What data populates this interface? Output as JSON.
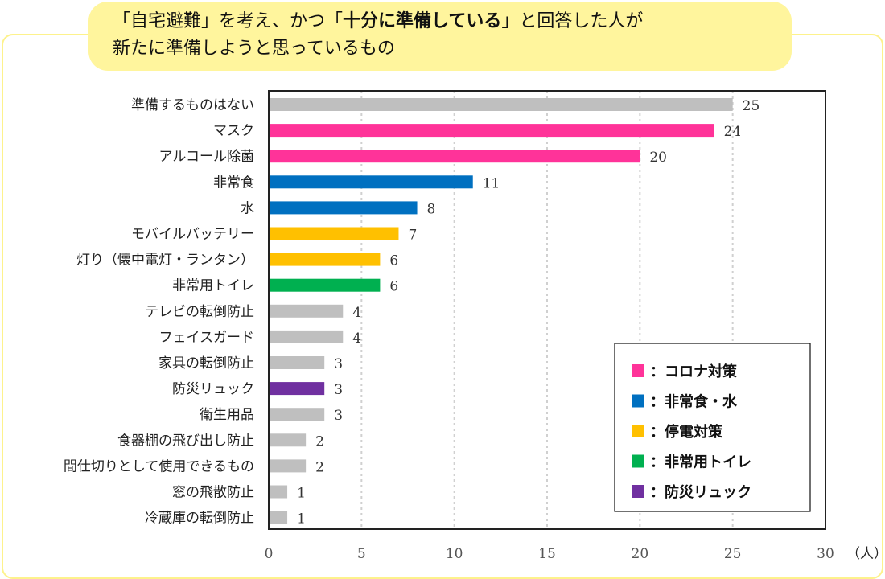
{
  "title": {
    "line1_a": "「自宅避難」を考え、かつ「",
    "line1_bold": "十分に準備している",
    "line1_b": "」と回答した人が",
    "line2": "新たに準備しようと思っているもの"
  },
  "chart_data": {
    "type": "bar",
    "orientation": "horizontal",
    "categories": [
      "準備するものはない",
      "マスク",
      "アルコール除菌",
      "非常食",
      "水",
      "モバイルバッテリー",
      "灯り（懐中電灯・ランタン）",
      "非常用トイレ",
      "テレビの転倒防止",
      "フェイスガード",
      "家具の転倒防止",
      "防災リュック",
      "衛生用品",
      "食器棚の飛び出し防止",
      "間仕切りとして使用できるもの",
      "窓の飛散防止",
      "冷蔵庫の転倒防止"
    ],
    "values": [
      25,
      24,
      20,
      11,
      8,
      7,
      6,
      6,
      4,
      4,
      3,
      3,
      3,
      2,
      2,
      1,
      1
    ],
    "groups": [
      "other",
      "corona",
      "corona",
      "food",
      "food",
      "power",
      "power",
      "toilet",
      "other",
      "other",
      "other",
      "bag",
      "other",
      "other",
      "other",
      "other",
      "other"
    ],
    "colors": {
      "corona": "#ff3399",
      "food": "#0070c0",
      "power": "#ffc000",
      "toilet": "#00b050",
      "bag": "#7030a0",
      "other": "#bfbfbf"
    },
    "xlim": [
      0,
      30
    ],
    "xticks": [
      "0",
      "5",
      "10",
      "15",
      "20",
      "25",
      "30"
    ],
    "xunit": "（人）",
    "grid": "vertical dotted",
    "legend_position": "bottom-right",
    "legend": [
      {
        "group": "corona",
        "label": "：コロナ対策"
      },
      {
        "group": "food",
        "label": "：非常食・水"
      },
      {
        "group": "power",
        "label": "：停電対策"
      },
      {
        "group": "toilet",
        "label": "：非常用トイレ"
      },
      {
        "group": "bag",
        "label": "：防災リュック"
      }
    ]
  }
}
